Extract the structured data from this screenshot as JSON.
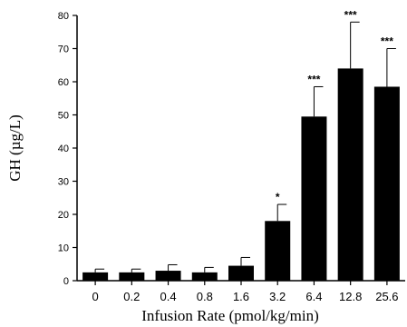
{
  "chart_data": {
    "type": "bar",
    "categories": [
      "0",
      "0.2",
      "0.4",
      "0.8",
      "1.6",
      "3.2",
      "6.4",
      "12.8",
      "25.6"
    ],
    "values": [
      2.5,
      2.5,
      3,
      2.5,
      4.5,
      18,
      49.5,
      64,
      58.5
    ],
    "errors": [
      1.0,
      1.0,
      1.8,
      1.5,
      2.5,
      5.0,
      9.0,
      14.0,
      11.5
    ],
    "significance": [
      "",
      "",
      "",
      "",
      "",
      "*",
      "***",
      "***",
      "***"
    ],
    "xlabel": "Infusion Rate (pmol/kg/min)",
    "ylabel": "GH (µg/L)",
    "ylim": [
      0,
      80
    ],
    "yticks": [
      0,
      10,
      20,
      30,
      40,
      50,
      60,
      70,
      80
    ],
    "bar_color": "#000000",
    "grid": false
  }
}
